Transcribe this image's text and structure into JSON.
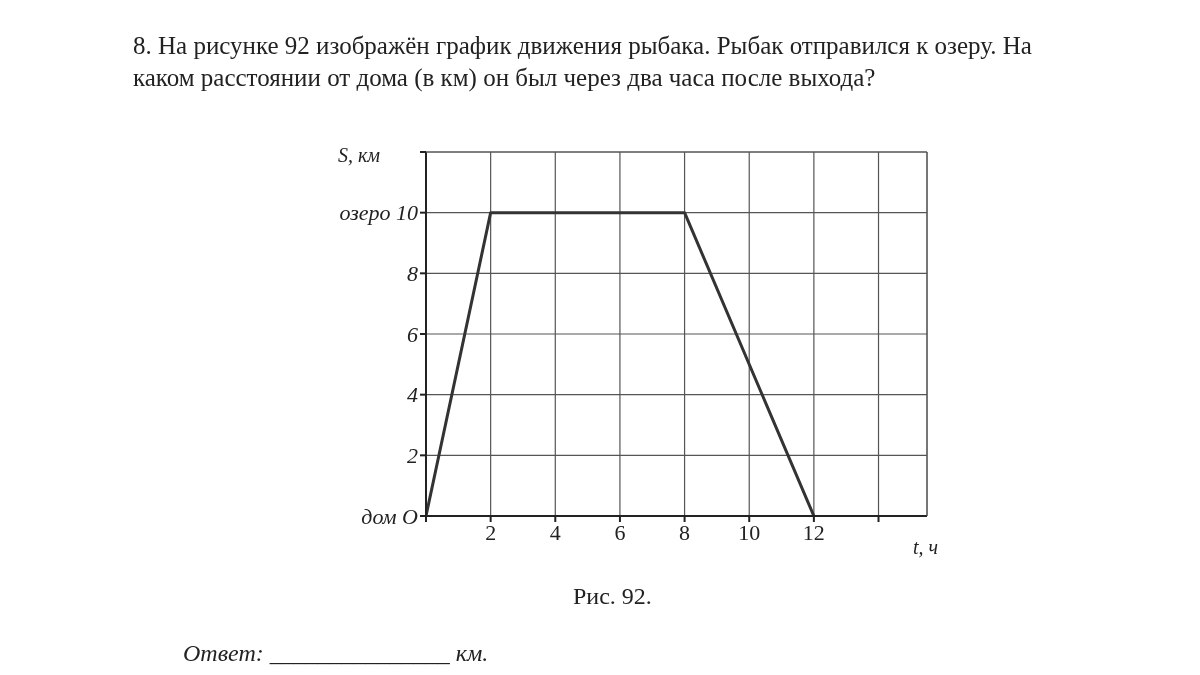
{
  "chart_data": {
    "type": "line",
    "title": "8. На рисунке 92 изображён график движения рыбака. Рыбак отправился к озеру. На каком расстоянии от дома (в км) он был через два часа после выхода?",
    "xlabel": "t, ч",
    "ylabel": "S, км",
    "x": [
      0,
      2,
      8,
      12
    ],
    "series": [
      {
        "color": "#333333",
        "values": [
          0,
          10,
          10,
          0
        ]
      }
    ],
    "xlim": [
      0,
      15.5
    ],
    "ylim": [
      0,
      12
    ],
    "xticks": [
      {
        "value": 0,
        "label": null
      },
      2,
      4,
      6,
      8,
      10,
      12,
      {
        "value": 14,
        "label": null
      }
    ],
    "yticks": [
      {
        "value": 0,
        "label": "дом O"
      },
      2,
      4,
      6,
      8,
      {
        "value": 10,
        "label": "озеро 10"
      },
      {
        "value": 12,
        "label": null
      }
    ],
    "grid": true,
    "marker": "none",
    "line_style": "solid",
    "annotations": [
      "Рис. 92.",
      "Ответ: _______________ км."
    ]
  }
}
